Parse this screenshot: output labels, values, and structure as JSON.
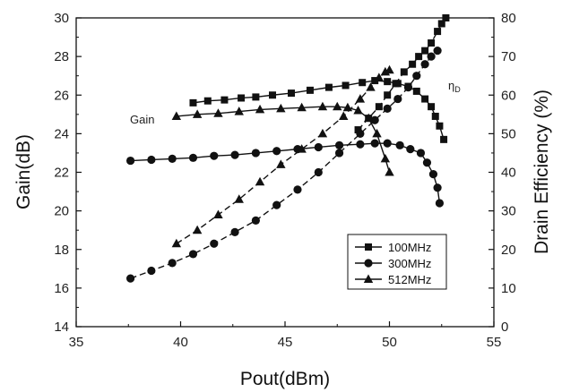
{
  "chart_data": {
    "type": "line",
    "x_axis": {
      "label": "Pout(dBm)",
      "lim": [
        35,
        55
      ],
      "ticks": [
        35,
        40,
        45,
        50,
        55
      ]
    },
    "y_left": {
      "label": "Gain(dB)",
      "lim": [
        14,
        30
      ],
      "ticks": [
        14,
        16,
        18,
        20,
        22,
        24,
        26,
        28,
        30
      ]
    },
    "y_right": {
      "label": "Drain Efficiency (%)",
      "lim": [
        0,
        80
      ],
      "ticks": [
        0,
        10,
        20,
        30,
        40,
        50,
        60,
        70,
        80
      ]
    },
    "grid": false,
    "legend_position": "lower-right",
    "annotations": {
      "gain": "Gain",
      "eta_main": "η",
      "eta_sub": "D"
    },
    "series": [
      {
        "name": "100MHz",
        "marker": "square",
        "gain": {
          "x": [
            40.6,
            41.3,
            42.1,
            42.9,
            43.6,
            44.4,
            45.3,
            46.2,
            47.1,
            47.9,
            48.7,
            49.3,
            49.9,
            50.4,
            50.9,
            51.3,
            51.7,
            52.0,
            52.2,
            52.4,
            52.6
          ],
          "y": [
            25.6,
            25.7,
            25.75,
            25.85,
            25.9,
            26.0,
            26.1,
            26.25,
            26.4,
            26.5,
            26.65,
            26.75,
            26.7,
            26.6,
            26.45,
            26.2,
            25.8,
            25.4,
            24.9,
            24.4,
            23.7
          ]
        },
        "efficiency": {
          "x": [
            48.5,
            49.0,
            49.5,
            49.9,
            50.3,
            50.7,
            51.1,
            51.4,
            51.7,
            52.0,
            52.3,
            52.5,
            52.7
          ],
          "y": [
            51,
            54,
            57,
            60,
            63,
            66,
            68,
            70,
            71.5,
            73.5,
            76.5,
            78.5,
            80
          ]
        }
      },
      {
        "name": "300MHz",
        "marker": "circle",
        "gain": {
          "x": [
            37.6,
            38.6,
            39.6,
            40.6,
            41.6,
            42.6,
            43.6,
            44.6,
            45.6,
            46.6,
            47.6,
            48.6,
            49.3,
            49.9,
            50.5,
            51.0,
            51.5,
            51.8,
            52.1,
            52.3,
            52.4
          ],
          "y": [
            22.6,
            22.65,
            22.7,
            22.75,
            22.85,
            22.9,
            23.0,
            23.1,
            23.2,
            23.3,
            23.4,
            23.45,
            23.5,
            23.5,
            23.4,
            23.2,
            23.0,
            22.5,
            21.9,
            21.2,
            20.4
          ]
        },
        "efficiency": {
          "x": [
            37.6,
            38.6,
            39.6,
            40.6,
            41.6,
            42.6,
            43.6,
            44.6,
            45.6,
            46.6,
            47.6,
            48.6,
            49.3,
            49.9,
            50.4,
            50.9,
            51.3,
            51.7,
            52.0,
            52.3
          ],
          "y": [
            12.5,
            14.5,
            16.5,
            18.8,
            21.5,
            24.5,
            27.5,
            31.5,
            35.5,
            40,
            45,
            50,
            53.5,
            56.5,
            59,
            62,
            65,
            68,
            70,
            71.5
          ]
        }
      },
      {
        "name": "512MHz",
        "marker": "triangle",
        "gain": {
          "x": [
            39.8,
            40.8,
            41.8,
            42.8,
            43.8,
            44.8,
            45.8,
            46.8,
            47.5,
            48.0,
            48.5,
            49.0,
            49.4,
            49.8,
            50.0
          ],
          "y": [
            24.9,
            25.0,
            25.05,
            25.15,
            25.25,
            25.3,
            25.35,
            25.4,
            25.4,
            25.35,
            25.2,
            24.8,
            24.0,
            22.7,
            22.0
          ]
        },
        "efficiency": {
          "x": [
            39.8,
            40.8,
            41.8,
            42.8,
            43.8,
            44.8,
            45.8,
            46.8,
            47.8,
            48.6,
            49.1,
            49.5,
            49.8,
            50.0
          ],
          "y": [
            21.5,
            25,
            29,
            33,
            37.5,
            42,
            46,
            50,
            54.5,
            59,
            62,
            64.5,
            66,
            66.5
          ]
        }
      }
    ]
  }
}
